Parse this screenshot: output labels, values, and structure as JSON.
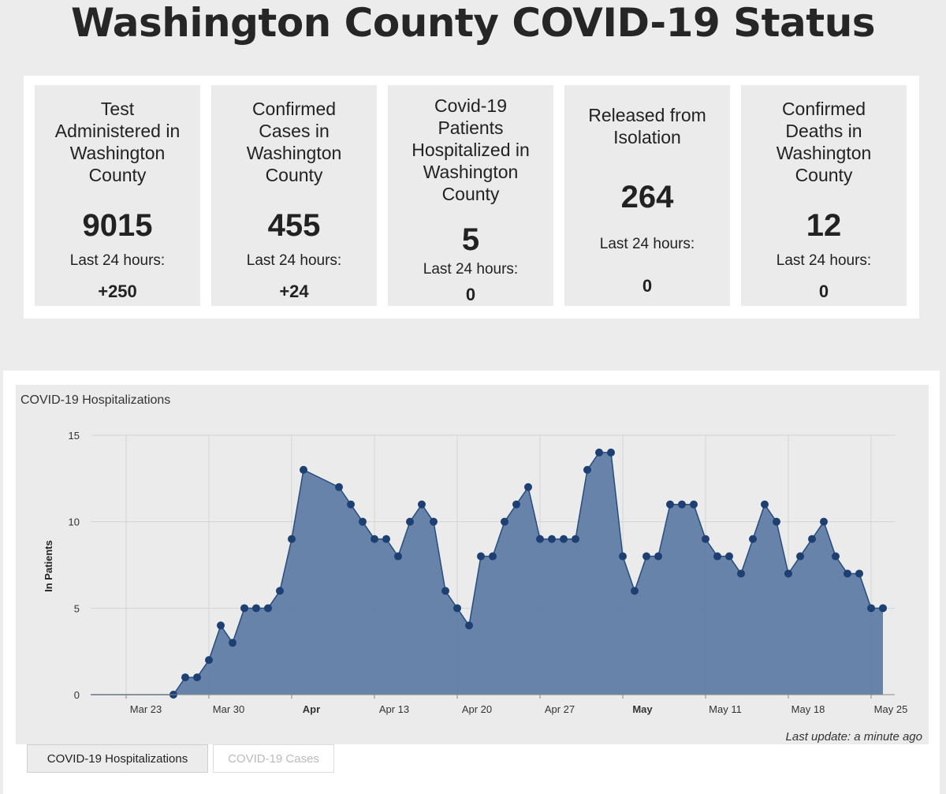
{
  "page": {
    "title": "Washington County COVID-19 Status"
  },
  "stats": [
    {
      "title_lines": [
        "Test",
        "Administered in",
        "Washington",
        "County"
      ],
      "value": "9015",
      "sub": "Last 24 hours:",
      "delta": "+250"
    },
    {
      "title_lines": [
        "Confirmed",
        "Cases in",
        "Washington",
        "County"
      ],
      "value": "455",
      "sub": "Last 24 hours:",
      "delta": "+24"
    },
    {
      "title_lines": [
        "Covid-19",
        "Patients",
        "Hospitalized in",
        "Washington",
        "County"
      ],
      "value": "5",
      "sub": "Last 24 hours:",
      "delta": "0"
    },
    {
      "title_lines": [
        "Released from",
        "Isolation"
      ],
      "value": "264",
      "sub": "Last 24 hours:",
      "delta": "0"
    },
    {
      "title_lines": [
        "Confirmed",
        "Deaths in",
        "Washington",
        "County"
      ],
      "value": "12",
      "sub": "Last 24 hours:",
      "delta": "0"
    }
  ],
  "chart": {
    "last_update": "Last update: a minute ago",
    "tabs": [
      "COVID-19 Hospitalizations",
      "COVID-19 Cases"
    ]
  },
  "colors": {
    "area_fill": "#5b7aa3",
    "line": "#284c7e",
    "marker": "#1d3f72",
    "grid": "#d4d4d4"
  },
  "chart_data": {
    "type": "area",
    "title": "COVID-19 Hospitalizations",
    "ylabel": "In Patients",
    "ylim": [
      0,
      15
    ],
    "yticks": [
      0,
      5,
      10,
      15
    ],
    "xlim": [
      "2020-03-20",
      "2020-05-27"
    ],
    "xticks": [
      {
        "date": "2020-03-23",
        "label": "Mar 23",
        "bold": false
      },
      {
        "date": "2020-03-30",
        "label": "Mar 30",
        "bold": false
      },
      {
        "date": "2020-04-06",
        "label": "Apr",
        "bold": true
      },
      {
        "date": "2020-04-13",
        "label": "Apr 13",
        "bold": false
      },
      {
        "date": "2020-04-20",
        "label": "Apr 20",
        "bold": false
      },
      {
        "date": "2020-04-27",
        "label": "Apr 27",
        "bold": false
      },
      {
        "date": "2020-05-04",
        "label": "May",
        "bold": true
      },
      {
        "date": "2020-05-11",
        "label": "May 11",
        "bold": false
      },
      {
        "date": "2020-05-18",
        "label": "May 18",
        "bold": false
      },
      {
        "date": "2020-05-25",
        "label": "May 25",
        "bold": false
      }
    ],
    "points": [
      [
        "2020-03-27",
        0
      ],
      [
        "2020-03-28",
        1
      ],
      [
        "2020-03-29",
        1
      ],
      [
        "2020-03-30",
        2
      ],
      [
        "2020-03-31",
        4
      ],
      [
        "2020-04-01",
        3
      ],
      [
        "2020-04-02",
        5
      ],
      [
        "2020-04-03",
        5
      ],
      [
        "2020-04-04",
        5
      ],
      [
        "2020-04-05",
        6
      ],
      [
        "2020-04-06",
        9
      ],
      [
        "2020-04-07",
        13
      ],
      [
        "2020-04-10",
        12
      ],
      [
        "2020-04-11",
        11
      ],
      [
        "2020-04-12",
        10
      ],
      [
        "2020-04-13",
        9
      ],
      [
        "2020-04-14",
        9
      ],
      [
        "2020-04-15",
        8
      ],
      [
        "2020-04-16",
        10
      ],
      [
        "2020-04-17",
        11
      ],
      [
        "2020-04-18",
        10
      ],
      [
        "2020-04-19",
        6
      ],
      [
        "2020-04-20",
        5
      ],
      [
        "2020-04-21",
        4
      ],
      [
        "2020-04-22",
        8
      ],
      [
        "2020-04-23",
        8
      ],
      [
        "2020-04-24",
        10
      ],
      [
        "2020-04-25",
        11
      ],
      [
        "2020-04-26",
        12
      ],
      [
        "2020-04-27",
        9
      ],
      [
        "2020-04-28",
        9
      ],
      [
        "2020-04-29",
        9
      ],
      [
        "2020-04-30",
        9
      ],
      [
        "2020-05-01",
        13
      ],
      [
        "2020-05-02",
        14
      ],
      [
        "2020-05-03",
        14
      ],
      [
        "2020-05-04",
        8
      ],
      [
        "2020-05-05",
        6
      ],
      [
        "2020-05-06",
        8
      ],
      [
        "2020-05-07",
        8
      ],
      [
        "2020-05-08",
        11
      ],
      [
        "2020-05-09",
        11
      ],
      [
        "2020-05-10",
        11
      ],
      [
        "2020-05-11",
        9
      ],
      [
        "2020-05-12",
        8
      ],
      [
        "2020-05-13",
        8
      ],
      [
        "2020-05-14",
        7
      ],
      [
        "2020-05-15",
        9
      ],
      [
        "2020-05-16",
        11
      ],
      [
        "2020-05-17",
        10
      ],
      [
        "2020-05-18",
        7
      ],
      [
        "2020-05-19",
        8
      ],
      [
        "2020-05-20",
        9
      ],
      [
        "2020-05-21",
        10
      ],
      [
        "2020-05-22",
        8
      ],
      [
        "2020-05-23",
        7
      ],
      [
        "2020-05-24",
        7
      ],
      [
        "2020-05-25",
        5
      ],
      [
        "2020-05-26",
        5
      ]
    ]
  }
}
